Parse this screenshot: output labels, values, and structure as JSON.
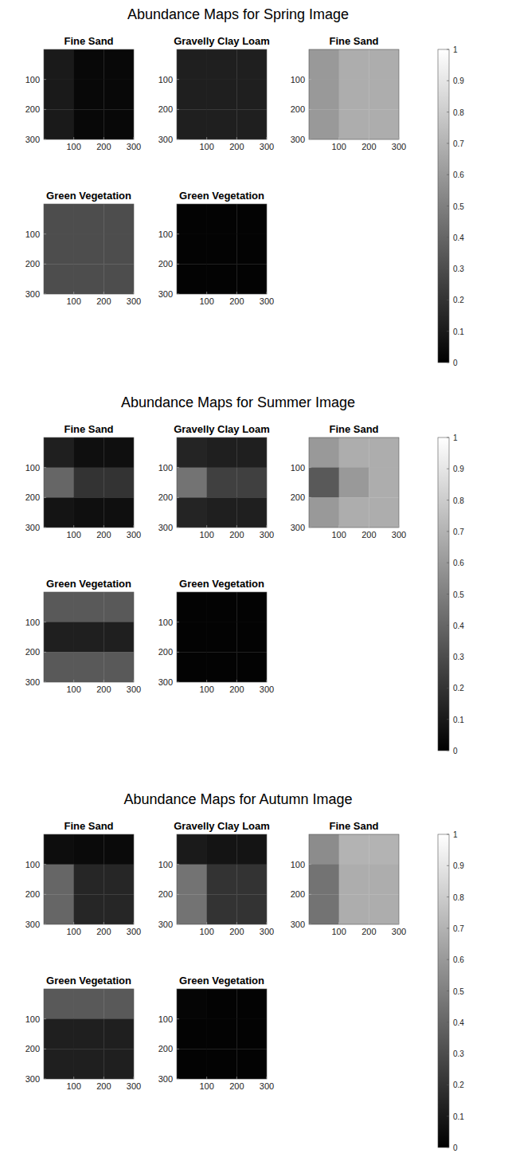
{
  "chart_data": [
    {
      "type": "heatmap",
      "title": "Abundance Maps for Spring Image",
      "xlim": [
        0,
        300
      ],
      "ylim": [
        0,
        300
      ],
      "xticks": [
        100,
        200,
        300
      ],
      "yticks": [
        100,
        200,
        300
      ],
      "colorbar": {
        "range": [
          0,
          1
        ],
        "ticks": [
          0,
          0.1,
          0.2,
          0.3,
          0.4,
          0.5,
          0.6,
          0.7,
          0.8,
          0.9,
          1
        ]
      },
      "panels": [
        {
          "title": "Fine Sand",
          "cells": [
            [
              0.1,
              0.03,
              0.03
            ],
            [
              0.1,
              0.03,
              0.03
            ],
            [
              0.1,
              0.03,
              0.03
            ]
          ]
        },
        {
          "title": "Gravelly Clay Loam",
          "cells": [
            [
              0.12,
              0.12,
              0.12
            ],
            [
              0.12,
              0.12,
              0.12
            ],
            [
              0.12,
              0.12,
              0.12
            ]
          ]
        },
        {
          "title": "Fine Sand",
          "cells": [
            [
              0.6,
              0.68,
              0.68
            ],
            [
              0.6,
              0.68,
              0.68
            ],
            [
              0.6,
              0.68,
              0.68
            ]
          ]
        },
        {
          "title": "Green Vegetation",
          "cells": [
            [
              0.3,
              0.3,
              0.3
            ],
            [
              0.3,
              0.3,
              0.3
            ],
            [
              0.3,
              0.3,
              0.3
            ]
          ]
        },
        {
          "title": "Green Vegetation",
          "cells": [
            [
              0.01,
              0.01,
              0.01
            ],
            [
              0.01,
              0.01,
              0.01
            ],
            [
              0.01,
              0.01,
              0.01
            ]
          ]
        }
      ]
    },
    {
      "type": "heatmap",
      "title": "Abundance Maps for Summer Image",
      "xlim": [
        0,
        300
      ],
      "ylim": [
        0,
        300
      ],
      "xticks": [
        100,
        200,
        300
      ],
      "yticks": [
        100,
        200,
        300
      ],
      "colorbar": {
        "range": [
          0,
          1
        ],
        "ticks": [
          0,
          0.1,
          0.2,
          0.3,
          0.4,
          0.5,
          0.6,
          0.7,
          0.8,
          0.9,
          1
        ]
      },
      "panels": [
        {
          "title": "Fine Sand",
          "cells": [
            [
              0.12,
              0.06,
              0.06
            ],
            [
              0.4,
              0.2,
              0.2
            ],
            [
              0.08,
              0.06,
              0.06
            ]
          ]
        },
        {
          "title": "Gravelly Clay Loam",
          "cells": [
            [
              0.14,
              0.12,
              0.12
            ],
            [
              0.45,
              0.25,
              0.25
            ],
            [
              0.14,
              0.12,
              0.12
            ]
          ]
        },
        {
          "title": "Fine Sand",
          "cells": [
            [
              0.6,
              0.68,
              0.68
            ],
            [
              0.35,
              0.6,
              0.68
            ],
            [
              0.6,
              0.68,
              0.68
            ]
          ]
        },
        {
          "title": "Green Vegetation",
          "cells": [
            [
              0.35,
              0.35,
              0.35
            ],
            [
              0.12,
              0.12,
              0.12
            ],
            [
              0.35,
              0.35,
              0.35
            ]
          ]
        },
        {
          "title": "Green Vegetation",
          "cells": [
            [
              0.01,
              0.01,
              0.01
            ],
            [
              0.01,
              0.01,
              0.01
            ],
            [
              0.01,
              0.01,
              0.01
            ]
          ]
        }
      ]
    },
    {
      "type": "heatmap",
      "title": "Abundance Maps for Autumn Image",
      "xlim": [
        0,
        300
      ],
      "ylim": [
        0,
        300
      ],
      "xticks": [
        100,
        200,
        300
      ],
      "yticks": [
        100,
        200,
        300
      ],
      "colorbar": {
        "range": [
          0,
          1
        ],
        "ticks": [
          0,
          0.1,
          0.2,
          0.3,
          0.4,
          0.5,
          0.6,
          0.7,
          0.8,
          0.9,
          1
        ]
      },
      "panels": [
        {
          "title": "Fine Sand",
          "cells": [
            [
              0.05,
              0.04,
              0.04
            ],
            [
              0.4,
              0.15,
              0.15
            ],
            [
              0.4,
              0.15,
              0.15
            ]
          ]
        },
        {
          "title": "Gravelly Clay Loam",
          "cells": [
            [
              0.1,
              0.08,
              0.08
            ],
            [
              0.45,
              0.2,
              0.2
            ],
            [
              0.45,
              0.2,
              0.2
            ]
          ]
        },
        {
          "title": "Fine Sand",
          "cells": [
            [
              0.55,
              0.7,
              0.7
            ],
            [
              0.45,
              0.68,
              0.68
            ],
            [
              0.45,
              0.68,
              0.68
            ]
          ]
        },
        {
          "title": "Green Vegetation",
          "cells": [
            [
              0.35,
              0.35,
              0.35
            ],
            [
              0.12,
              0.12,
              0.12
            ],
            [
              0.12,
              0.12,
              0.12
            ]
          ]
        },
        {
          "title": "Green Vegetation",
          "cells": [
            [
              0.02,
              0.01,
              0.01
            ],
            [
              0.01,
              0.01,
              0.01
            ],
            [
              0.01,
              0.01,
              0.01
            ]
          ]
        }
      ]
    }
  ]
}
